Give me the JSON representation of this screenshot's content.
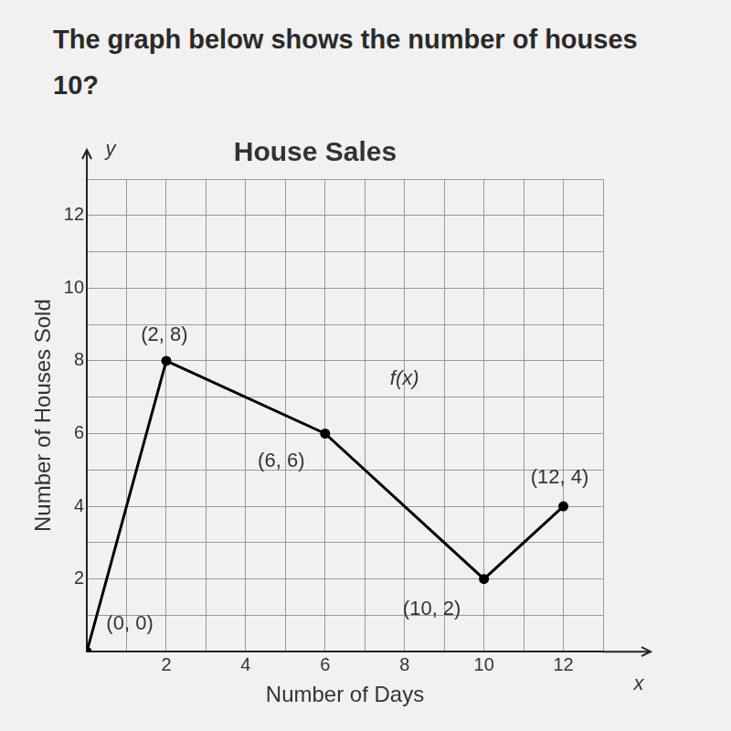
{
  "header": {
    "lines": [
      "The graph below shows the number of houses",
      "10?"
    ]
  },
  "chart_data": {
    "type": "line",
    "title": "House Sales",
    "x_label": "Number of Days",
    "y_label": "Number of Houses Sold",
    "x": [
      0,
      2,
      6,
      10,
      12
    ],
    "values": [
      0,
      8,
      6,
      2,
      4
    ],
    "value_labels": [
      "(0, 0)",
      "(2, 8)",
      "(6, 6)",
      "(10, 2)",
      "(12, 4)"
    ],
    "data_labels": true,
    "color": "#000000",
    "marker": "circle",
    "xlim": [
      0,
      13
    ],
    "ylim": [
      0,
      13
    ],
    "xticks": [
      2,
      4,
      6,
      8,
      10,
      12
    ],
    "yticks": [
      2,
      4,
      6,
      8,
      10,
      12
    ],
    "grid": true,
    "annotations": [
      {
        "text": "f(x)",
        "x": 8,
        "y": 7.5
      },
      {
        "text": "y",
        "x": 0.6,
        "y": 13.8
      },
      {
        "text": "x",
        "x": 13.9,
        "y": -0.9
      }
    ]
  }
}
